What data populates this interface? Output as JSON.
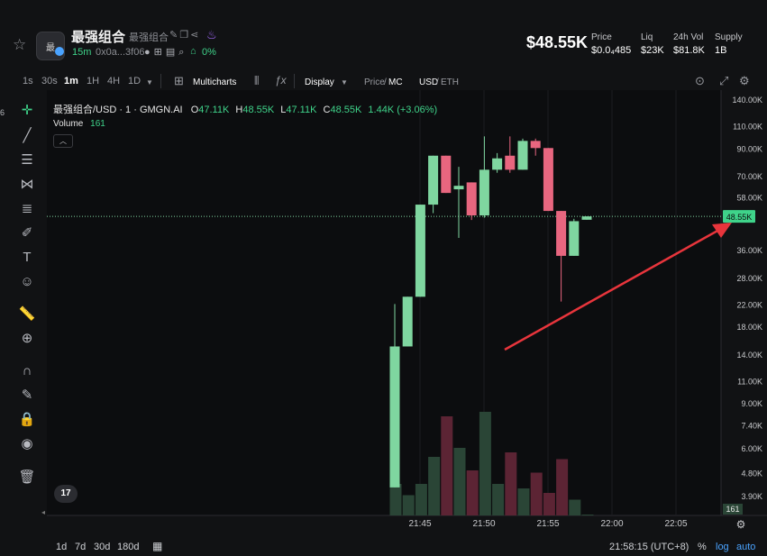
{
  "token": {
    "name": "最强组合",
    "subname": "最强组合",
    "age": "15m",
    "address": "0x0a...3f06",
    "change_badge": "0%",
    "logo_text": "最"
  },
  "stats": {
    "price_big": "$48.55K",
    "price_label": "Price",
    "price_value": "$0.0₄485",
    "liq_label": "Liq",
    "liq_value": "$23K",
    "vol_label": "24h Vol",
    "vol_value": "$81.8K",
    "supply_label": "Supply",
    "supply_value": "1B"
  },
  "toolbar": {
    "intervals": [
      "1s",
      "30s",
      "1m",
      "1H",
      "4H",
      "1D"
    ],
    "active_interval": "1m",
    "multicharts": "Multicharts",
    "display": "Display",
    "price_label": "Price",
    "mc_label": "MC",
    "usd_label": "USD",
    "eth_label": "ETH"
  },
  "legend": {
    "symbol": "最强组合/USD · 1 · GMGN.AI",
    "o_label": "O",
    "o_value": "47.11K",
    "h_label": "H",
    "h_value": "48.55K",
    "l_label": "L",
    "l_value": "47.11K",
    "c_label": "C",
    "c_value": "48.55K",
    "change": "1.44K (+3.06%)",
    "volume_label": "Volume",
    "volume_value": "161"
  },
  "bottom": {
    "ranges": [
      "1d",
      "7d",
      "30d",
      "180d"
    ],
    "clock": "21:58:15 (UTC+8)",
    "pct": "%",
    "log": "log",
    "auto": "auto"
  },
  "colors": {
    "up": "#7fd6a0",
    "down": "#e8667f",
    "vol_up": "#2a4536",
    "vol_down": "#5c2434",
    "annotation_arrow": "#e8353c"
  },
  "chart_data": {
    "type": "candlestick",
    "y_scale": "log",
    "y_ticks": [
      "140.00K",
      "110.00K",
      "90.00K",
      "70.00K",
      "58.00K",
      "48.55K",
      "36.00K",
      "28.00K",
      "22.00K",
      "18.00K",
      "14.00K",
      "11.00K",
      "9.00K",
      "7.40K",
      "6.00K",
      "4.80K",
      "3.90K"
    ],
    "x_ticks": [
      "21:45",
      "21:50",
      "21:55",
      "22:00",
      "22:05"
    ],
    "current_price_label": "48.55K",
    "volume_badge": "161",
    "candles": [
      {
        "o": 4.2,
        "h": 22.0,
        "l": 4.2,
        "c": 15.0
      },
      {
        "o": 15.0,
        "h": 23.5,
        "l": 15.0,
        "c": 23.5
      },
      {
        "o": 23.5,
        "h": 54.0,
        "l": 23.5,
        "c": 54.0
      },
      {
        "o": 54.0,
        "h": 84.0,
        "l": 50.0,
        "c": 84.0
      },
      {
        "o": 84.0,
        "h": 84.0,
        "l": 60.0,
        "c": 60.0
      },
      {
        "o": 62.0,
        "h": 76.0,
        "l": 40.0,
        "c": 64.0
      },
      {
        "o": 66.0,
        "h": 66.0,
        "l": 47.0,
        "c": 49.0
      },
      {
        "o": 49.0,
        "h": 100.0,
        "l": 48.0,
        "c": 74.0
      },
      {
        "o": 74.0,
        "h": 86.0,
        "l": 72.0,
        "c": 82.0
      },
      {
        "o": 84.0,
        "h": 100.0,
        "l": 72.0,
        "c": 74.0
      },
      {
        "o": 74.0,
        "h": 98.0,
        "l": 74.0,
        "c": 96.0
      },
      {
        "o": 96.0,
        "h": 98.0,
        "l": 84.0,
        "c": 90.0
      },
      {
        "o": 90.0,
        "h": 90.0,
        "l": 51.0,
        "c": 51.0
      },
      {
        "o": 51.0,
        "h": 51.0,
        "l": 22.5,
        "c": 34.0
      },
      {
        "o": 34.0,
        "h": 47.5,
        "l": 34.0,
        "c": 46.5
      },
      {
        "o": 47.1,
        "h": 48.55,
        "l": 47.1,
        "c": 48.55
      }
    ],
    "volumes": [
      7,
      4.5,
      7,
      13,
      22,
      15,
      10,
      23,
      7,
      14,
      6,
      9.5,
      5,
      12.5,
      3.5,
      0.2
    ]
  }
}
